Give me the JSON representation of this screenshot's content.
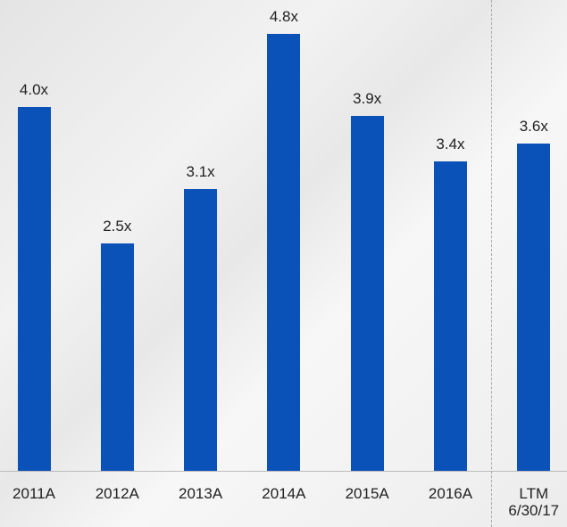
{
  "chart_data": {
    "type": "bar",
    "categories": [
      "2011A",
      "2012A",
      "2013A",
      "2014A",
      "2015A",
      "2016A",
      "LTM\n6/30/17"
    ],
    "values": [
      4.0,
      2.5,
      3.1,
      4.8,
      3.9,
      3.4,
      3.6
    ],
    "value_labels": [
      "4.0x",
      "2.5x",
      "3.1x",
      "4.8x",
      "3.9x",
      "3.4x",
      "3.6x"
    ],
    "color": "#0a52b8"
  }
}
